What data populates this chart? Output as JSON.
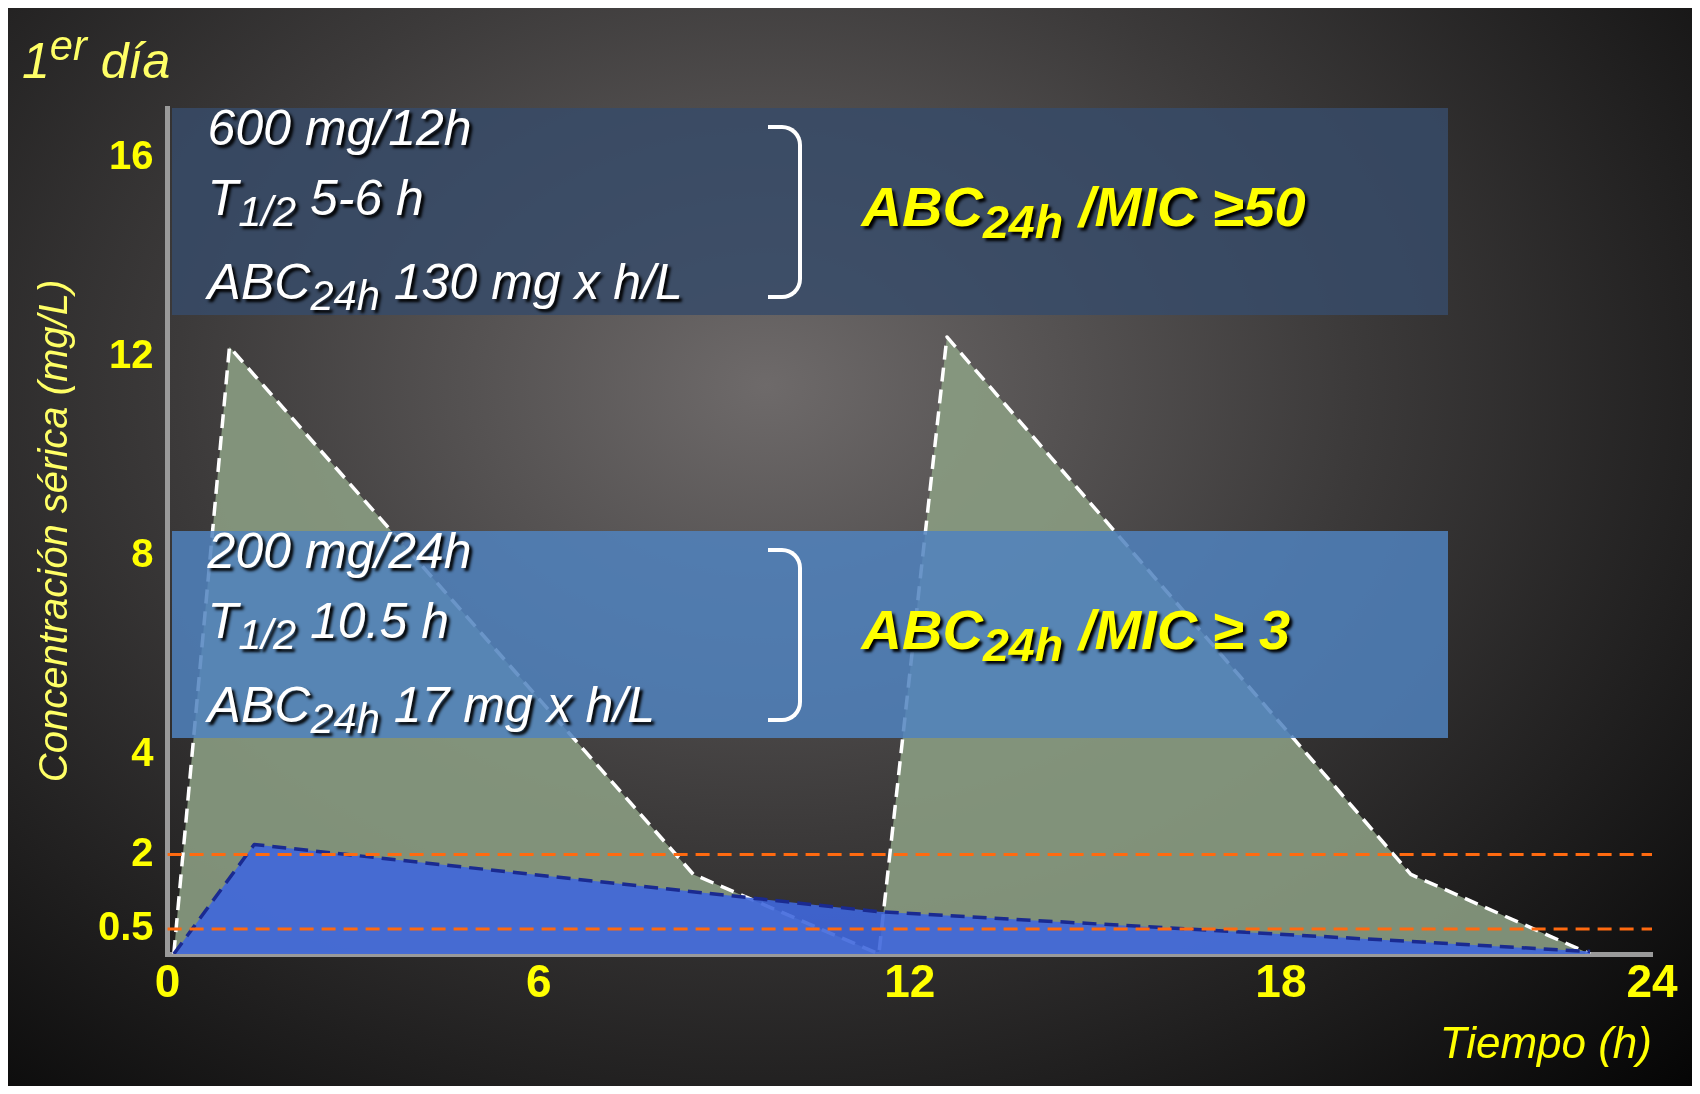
{
  "chart_data": {
    "type": "area",
    "xlabel": "Tiempo (h)",
    "ylabel": "Concentración sérica (mg/L)",
    "xlim": [
      0,
      24
    ],
    "xticks": [
      0,
      6,
      12,
      18,
      24
    ],
    "ylim": [
      0,
      17
    ],
    "yticks": [
      0.5,
      2,
      4,
      8,
      12,
      16
    ],
    "series": [
      {
        "color": "#8a9c82",
        "line_style": "dashed",
        "x": [
          0.1,
          1.0,
          8.5,
          11.5,
          12.6,
          20.1,
          23.0
        ],
        "values": [
          0,
          12.2,
          1.6,
          0,
          12.4,
          1.6,
          0
        ]
      },
      {
        "color": "#3f67dc",
        "line_style": "dashed",
        "x": [
          0.1,
          1.4,
          11.5,
          23.0
        ],
        "values": [
          0,
          2.2,
          0.85,
          0.05
        ]
      }
    ],
    "ref_lines": [
      {
        "axis": "y",
        "value": 2,
        "color": "#ff6a10",
        "line_style": "dashed"
      },
      {
        "axis": "y",
        "value": 0.5,
        "color": "#ff6a10",
        "line_style": "dashed"
      }
    ],
    "annotations": [
      "600 mg/12h",
      "T$_{1/2}$ 5-6 h",
      "ABC$_{24h}$ 130 mg x h/L",
      "ABC$_{24h}$ /MIC ≥50",
      "200 mg/24h",
      "T$_{1/2}$ 10.5 h",
      "ABC$_{24h}$ 17 mg x h/L",
      "ABC$_{24h}$ /MIC ≥ 3",
      "1$^{er}$ día"
    ],
    "grid": false,
    "legend": false
  }
}
